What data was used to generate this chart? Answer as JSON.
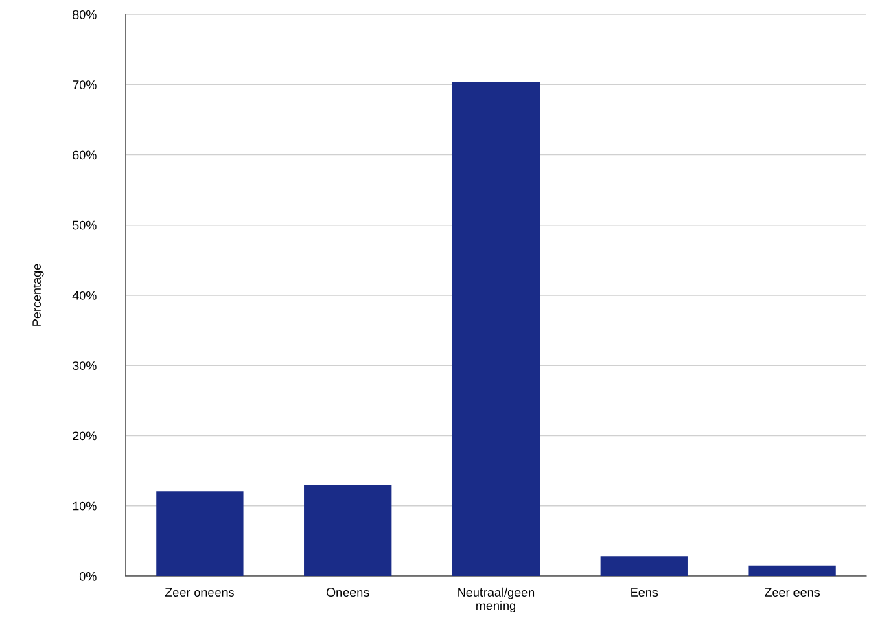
{
  "chart_data": {
    "type": "bar",
    "ylabel": "Percentage",
    "categories": [
      "Zeer oneens",
      "Oneens",
      "Neutraal/geen\nmening",
      "Eens",
      "Zeer eens"
    ],
    "values": [
      12.1,
      12.9,
      70.4,
      2.8,
      1.5
    ],
    "color": "#1a2c88",
    "ylim": [
      0,
      80
    ],
    "yticks": [
      {
        "value": 0,
        "label": "0%"
      },
      {
        "value": 10,
        "label": "10%"
      },
      {
        "value": 20,
        "label": "20%"
      },
      {
        "value": 30,
        "label": "30%"
      },
      {
        "value": 40,
        "label": "40%"
      },
      {
        "value": 50,
        "label": "50%"
      },
      {
        "value": 60,
        "label": "60%"
      },
      {
        "value": 70,
        "label": "70%"
      },
      {
        "value": 80,
        "label": "80%"
      }
    ],
    "grid": "y"
  }
}
